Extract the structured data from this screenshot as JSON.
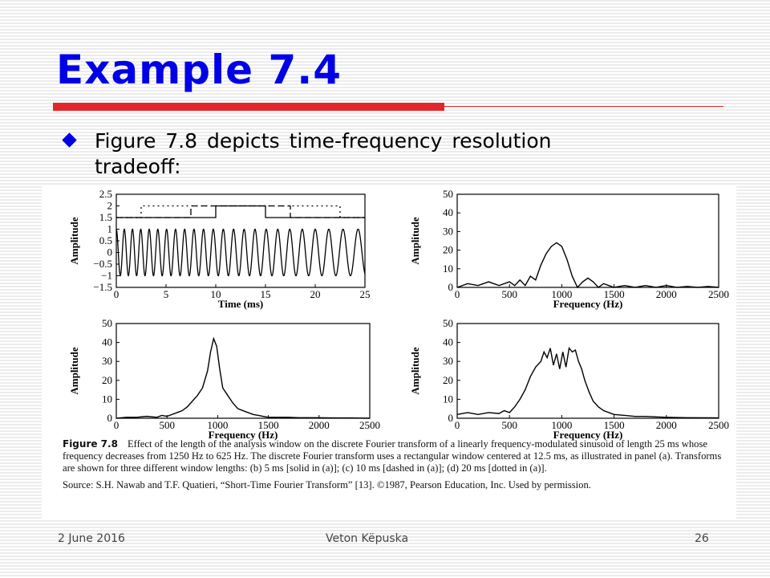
{
  "slide": {
    "title": "Example 7.4",
    "bullet": "Figure 7.8 depicts time-frequency resolution tradeoff:"
  },
  "colors": {
    "title": "#0000e6",
    "rule": "#e3262a",
    "bullet": "#0000e6"
  },
  "chart_data": [
    {
      "type": "line",
      "panel": "a",
      "xlabel": "Time (ms)",
      "ylabel": "Amplitude",
      "xlim": [
        0,
        25
      ],
      "ylim": [
        -1.5,
        2.5
      ],
      "x_ticks": [
        "0",
        "5",
        "10",
        "15",
        "20",
        "25"
      ],
      "y_ticks": [
        "2.5",
        "2",
        "1.5",
        "1",
        "0.5",
        "0",
        "−0.5",
        "−1",
        "−1.5"
      ],
      "series": [
        {
          "style": "solid",
          "x": [
            0,
            10,
            10,
            15,
            15,
            25
          ],
          "y": [
            1.5,
            1.5,
            2,
            2,
            1.5,
            1.5
          ]
        },
        {
          "style": "dashed",
          "x": [
            0,
            7.5,
            7.5,
            17.5,
            17.5,
            25
          ],
          "y": [
            1.5,
            1.5,
            2,
            2,
            1.5,
            1.5
          ]
        },
        {
          "style": "dotted",
          "x": [
            0,
            2.5,
            2.5,
            22.5,
            22.5,
            25
          ],
          "y": [
            1.5,
            1.5,
            2,
            2,
            1.5,
            1.5
          ]
        },
        {
          "style": "signal",
          "description": "linear FM sinusoid, 1250 Hz to 625 Hz",
          "f_start_hz": 1250,
          "f_end_hz": 625,
          "amplitude": 1
        }
      ]
    },
    {
      "type": "line",
      "panel": "b",
      "xlabel": "Frequency (Hz)",
      "ylabel": "Amplitude",
      "xlim": [
        0,
        2500
      ],
      "ylim": [
        0,
        50
      ],
      "x_ticks": [
        "0",
        "500",
        "1000",
        "1500",
        "2000",
        "2500"
      ],
      "y_ticks": [
        "50",
        "40",
        "30",
        "20",
        "10",
        "0"
      ],
      "x": [
        0,
        100,
        200,
        300,
        400,
        500,
        550,
        600,
        650,
        700,
        750,
        800,
        850,
        900,
        950,
        1000,
        1050,
        1100,
        1150,
        1200,
        1250,
        1300,
        1350,
        1400,
        1450,
        1500,
        1600,
        1700,
        1800,
        1900,
        2000,
        2100,
        2200,
        2300,
        2400,
        2500
      ],
      "y": [
        0,
        2,
        1,
        3,
        1,
        3,
        1,
        4,
        1,
        6,
        4,
        12,
        18,
        22,
        24,
        22,
        15,
        6,
        0,
        3,
        5,
        3,
        0,
        2,
        1,
        0,
        1,
        0,
        1,
        0,
        1,
        0,
        0.5,
        0,
        0.5,
        0
      ]
    },
    {
      "type": "line",
      "panel": "c",
      "xlabel": "Frequency (Hz)",
      "ylabel": "Amplitude",
      "xlim": [
        0,
        2500
      ],
      "ylim": [
        0,
        50
      ],
      "x_ticks": [
        "0",
        "500",
        "1000",
        "1500",
        "2000",
        "2500"
      ],
      "y_ticks": [
        "50",
        "40",
        "30",
        "20",
        "10",
        "0"
      ],
      "x": [
        0,
        100,
        200,
        300,
        400,
        450,
        500,
        550,
        600,
        650,
        700,
        750,
        800,
        850,
        900,
        930,
        960,
        990,
        1020,
        1050,
        1100,
        1150,
        1200,
        1250,
        1300,
        1350,
        1400,
        1450,
        1500,
        1600,
        1700,
        1800,
        1900,
        2000,
        2100,
        2200,
        2300,
        2500
      ],
      "y": [
        0,
        0.5,
        0.5,
        1,
        0.5,
        1.5,
        1,
        2,
        3,
        4,
        6,
        9,
        12,
        16,
        25,
        35,
        42,
        38,
        26,
        16,
        12,
        8,
        5,
        4,
        3,
        2,
        1.5,
        1,
        0.5,
        0.5,
        0.5,
        0.3,
        0.3,
        0.3,
        0.2,
        0.2,
        0.2,
        0
      ]
    },
    {
      "type": "line",
      "panel": "d",
      "xlabel": "Frequency (Hz)",
      "ylabel": "Amplitude",
      "xlim": [
        0,
        2500
      ],
      "ylim": [
        0,
        50
      ],
      "x_ticks": [
        "0",
        "500",
        "1000",
        "1500",
        "2000",
        "2500"
      ],
      "y_ticks": [
        "50",
        "40",
        "30",
        "20",
        "10",
        "0"
      ],
      "x": [
        0,
        100,
        200,
        300,
        400,
        450,
        500,
        550,
        600,
        650,
        700,
        750,
        800,
        830,
        860,
        890,
        920,
        950,
        980,
        1010,
        1040,
        1070,
        1100,
        1130,
        1160,
        1190,
        1220,
        1260,
        1300,
        1350,
        1400,
        1450,
        1500,
        1600,
        1700,
        1800,
        1900,
        2000,
        2200,
        2500
      ],
      "y": [
        2,
        3,
        2,
        3,
        2.5,
        4,
        3,
        6,
        10,
        15,
        22,
        27,
        30,
        35,
        32,
        37,
        28,
        34,
        26,
        35,
        27,
        37,
        35,
        36,
        30,
        26,
        20,
        14,
        9,
        6,
        4,
        3,
        2,
        1.5,
        1,
        1,
        0.7,
        0.5,
        0.3,
        0.2
      ]
    }
  ],
  "caption": {
    "label": "Figure 7.8",
    "text": "Effect of the length of the analysis window on the discrete Fourier transform of a linearly frequency-modulated sinusoid of length 25 ms whose frequency decreases from 1250 Hz to 625 Hz. The discrete Fourier transform uses a rectangular window centered at 12.5 ms, as illustrated in panel (a). Transforms are shown for three different window lengths: (b) 5 ms [solid in (a)]; (c) 10 ms [dashed in (a)]; (d) 20 ms [dotted in (a)].",
    "source": "Source: S.H. Nawab and T.F. Quatieri, “Short-Time Fourier Transform” [13]. ©1987, Pearson Education, Inc. Used by permission."
  },
  "footer": {
    "date": "2 June 2016",
    "author": "Veton Këpuska",
    "page": "26"
  }
}
